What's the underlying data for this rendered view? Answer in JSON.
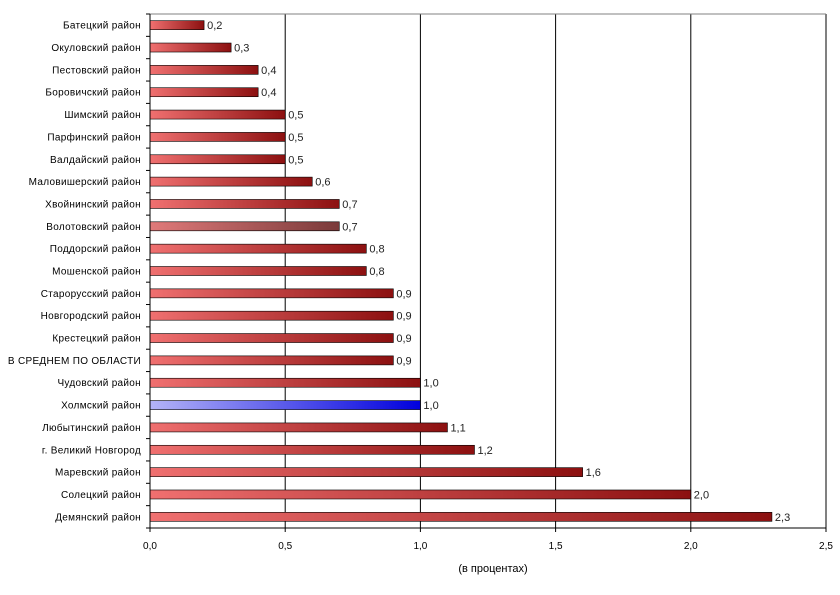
{
  "chart_data": {
    "type": "bar",
    "orientation": "horizontal",
    "categories": [
      "Батецкий район",
      "Окуловский  район",
      "Пестовский  район",
      "Боровичский район",
      "Шимский район",
      "Парфинский район",
      "Валдайский район",
      "Маловишерский район",
      "Хвойнинский район",
      "Волотовский район",
      "Поддорский район",
      "Мошенской район",
      "Старорусский район",
      "Новгородский район",
      "Крестецкий район",
      "В СРЕДНЕМ ПО ОБЛАСТИ",
      "Чудовский  район",
      "Холмский район",
      "Любытинский район",
      "г. Великий Новгород",
      "Маревский  район",
      "Солецкий район",
      "Демянский  район"
    ],
    "values": [
      0.2,
      0.3,
      0.4,
      0.4,
      0.5,
      0.5,
      0.5,
      0.6,
      0.7,
      0.7,
      0.8,
      0.8,
      0.9,
      0.9,
      0.9,
      0.9,
      1.0,
      1.0,
      1.1,
      1.2,
      1.6,
      2.0,
      2.3
    ],
    "value_labels": [
      "0,2",
      "0,3",
      "0,4",
      "0,4",
      "0,5",
      "0,5",
      "0,5",
      "0,6",
      "0,7",
      "0,7",
      "0,8",
      "0,8",
      "0,9",
      "0,9",
      "0,9",
      "0,9",
      "1,0",
      "1,0",
      "1,1",
      "1,2",
      "1,6",
      "2,0",
      "2,3"
    ],
    "highlight": {
      "Холмский район": "blue",
      "Волотовский район": "muted"
    },
    "colors": {
      "bar_light": "#f07070",
      "bar_dark": "#8c1010",
      "highlight_light": "#b4b4f8",
      "highlight_dark": "#0000dd",
      "muted_light": "#e07a7a",
      "muted_dark": "#7a3a3a"
    },
    "xlim": [
      0,
      2.5
    ],
    "x_ticks": [
      "0,0",
      "0,5",
      "1,0",
      "1,5",
      "2,0",
      "2,5"
    ],
    "x_tick_values": [
      0,
      0.5,
      1.0,
      1.5,
      2.0,
      2.5
    ],
    "xlabel": "(в процентах)",
    "ylabel": "",
    "title": "",
    "grid": "vertical"
  }
}
